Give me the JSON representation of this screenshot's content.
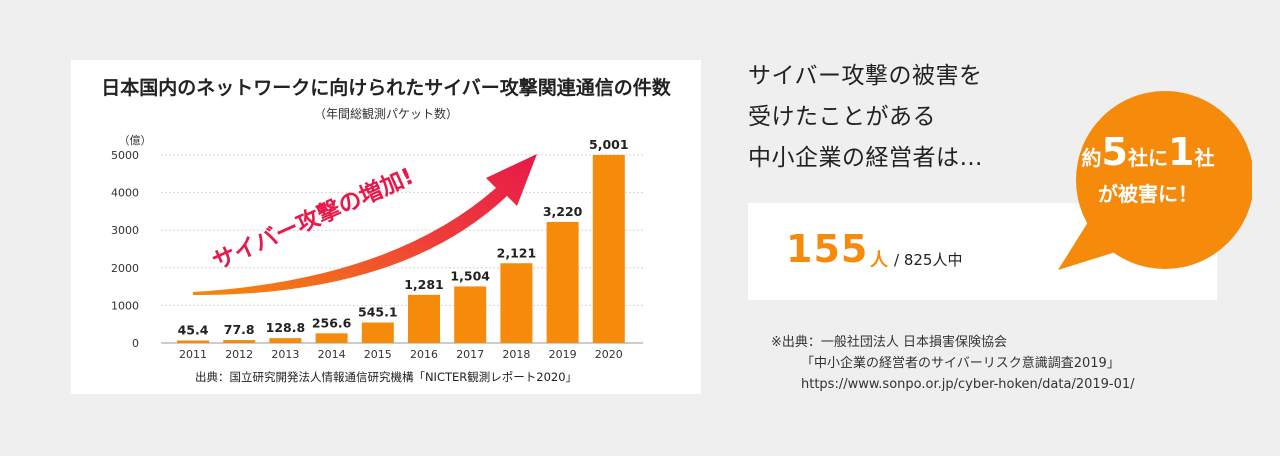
{
  "chart_data": {
    "type": "bar",
    "title": "日本国内のネットワークに向けられたサイバー攻撃関連通信の件数",
    "subtitle": "（年間総観測パケット数）",
    "ylabel": "（億）",
    "categories": [
      "2011",
      "2012",
      "2013",
      "2014",
      "2015",
      "2016",
      "2017",
      "2018",
      "2019",
      "2020"
    ],
    "values": [
      45.4,
      77.8,
      128.8,
      256.6,
      545.1,
      1281,
      1504,
      2121,
      3220,
      5001
    ],
    "value_labels": [
      "45.4",
      "77.8",
      "128.8",
      "256.6",
      "545.1",
      "1,281",
      "1,504",
      "2,121",
      "3,220",
      "5,001"
    ],
    "ylim": [
      0,
      5000
    ],
    "yticks": [
      "0",
      "1000",
      "2000",
      "3000",
      "4000",
      "5000"
    ],
    "bar_color": "#f58a0b",
    "grid": true,
    "annotation": "サイバー攻撃の増加!",
    "annotation_color": "#e8184a",
    "source": "出典：国立研究開発法人情報通信研究機構「NICTER観測レポート2020」"
  },
  "headline": {
    "lines": [
      "サイバー攻撃の被害を",
      "受けたことがある",
      "中小企業の経営者は…"
    ]
  },
  "stat": {
    "count": "155",
    "unit": "人",
    "total": "/ 825人中"
  },
  "bubble": {
    "pre": "約",
    "num1": "5",
    "mid": "社に",
    "num2": "1",
    "post": "社",
    "line2": "が被害に！",
    "color": "#f58a0b"
  },
  "source_block": {
    "line1": "※出典：一般社団法人 日本損害保険協会",
    "line2": "「中小企業の経営者のサイバーリスク意識調査2019」",
    "line3": "https://www.sonpo.or.jp/cyber-hoken/data/2019-01/"
  }
}
